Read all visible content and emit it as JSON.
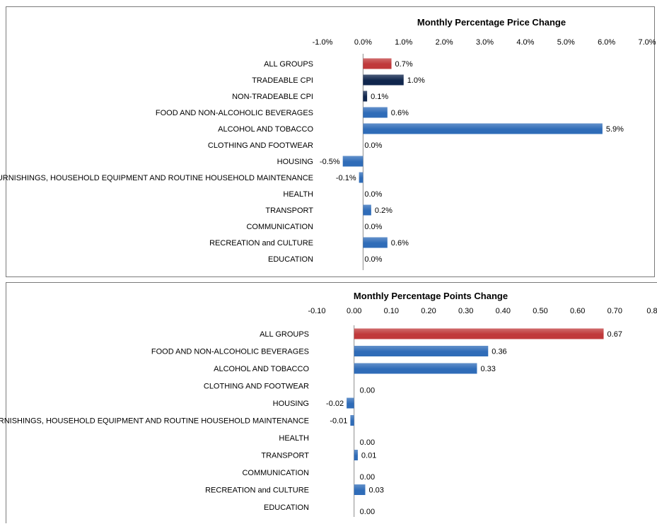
{
  "chart_data": [
    {
      "type": "bar",
      "orientation": "horizontal",
      "title": "Monthly Percentage Price Change",
      "xlim": [
        -1.0,
        7.0
      ],
      "tick_values": [
        -1.0,
        0.0,
        1.0,
        2.0,
        3.0,
        4.0,
        5.0,
        6.0,
        7.0
      ],
      "tick_labels": [
        "-1.0%",
        "0.0%",
        "1.0%",
        "2.0%",
        "3.0%",
        "4.0%",
        "5.0%",
        "6.0%",
        "7.0%"
      ],
      "categories": [
        "ALL GROUPS",
        "TRADEABLE CPI",
        "NON-TRADEABLE CPI",
        "FOOD AND NON-ALCOHOLIC BEVERAGES",
        "ALCOHOL AND TOBACCO",
        "CLOTHING AND FOOTWEAR",
        "HOUSING",
        "FURNISHINGS, HOUSEHOLD EQUIPMENT AND ROUTINE HOUSEHOLD MAINTENANCE",
        "HEALTH",
        "TRANSPORT",
        "COMMUNICATION",
        "RECREATION and CULTURE",
        "EDUCATION"
      ],
      "values": [
        0.7,
        1.0,
        0.1,
        0.6,
        5.9,
        0.0,
        -0.5,
        -0.1,
        0.0,
        0.2,
        0.0,
        0.6,
        0.0
      ],
      "data_labels": [
        "0.7%",
        "1.0%",
        "0.1%",
        "0.6%",
        "5.9%",
        "0.0%",
        "-0.5%",
        "-0.1%",
        "0.0%",
        "0.2%",
        "0.0%",
        "0.6%",
        "0.0%"
      ],
      "colors": [
        "#c0393b",
        "#10264d",
        "#10264d",
        "#2f6cb8",
        "#2f6cb8",
        "#2f6cb8",
        "#2f6cb8",
        "#2f6cb8",
        "#2f6cb8",
        "#2f6cb8",
        "#2f6cb8",
        "#2f6cb8",
        "#2f6cb8"
      ],
      "grid": false,
      "legend": "none"
    },
    {
      "type": "bar",
      "orientation": "horizontal",
      "title": "Monthly Percentage Points Change",
      "xlim": [
        -0.1,
        0.8
      ],
      "tick_values": [
        -0.1,
        0.0,
        0.1,
        0.2,
        0.3,
        0.4,
        0.5,
        0.6,
        0.7,
        0.8
      ],
      "tick_labels": [
        "-0.10",
        "0.00",
        "0.10",
        "0.20",
        "0.30",
        "0.40",
        "0.50",
        "0.60",
        "0.70",
        "0.8"
      ],
      "categories": [
        "ALL GROUPS",
        "FOOD AND NON-ALCOHOLIC BEVERAGES",
        "ALCOHOL AND TOBACCO",
        "CLOTHING AND FOOTWEAR",
        "HOUSING",
        "FURNISHINGS, HOUSEHOLD EQUIPMENT AND ROUTINE HOUSEHOLD MAINTENANCE",
        "HEALTH",
        "TRANSPORT",
        "COMMUNICATION",
        "RECREATION and CULTURE",
        "EDUCATION"
      ],
      "values": [
        0.67,
        0.36,
        0.33,
        0.0,
        -0.02,
        -0.01,
        0.0,
        0.01,
        0.0,
        0.03,
        0.0
      ],
      "data_labels": [
        "0.67",
        "0.36",
        "0.33",
        "0.00",
        "-0.02",
        "-0.01",
        "0.00",
        "0.01",
        "0.00",
        "0.03",
        "0.00"
      ],
      "colors": [
        "#c0393b",
        "#2f6cb8",
        "#2f6cb8",
        "#2f6cb8",
        "#2f6cb8",
        "#2f6cb8",
        "#2f6cb8",
        "#2f6cb8",
        "#2f6cb8",
        "#2f6cb8",
        "#2f6cb8"
      ],
      "grid": false,
      "legend": "none"
    }
  ]
}
